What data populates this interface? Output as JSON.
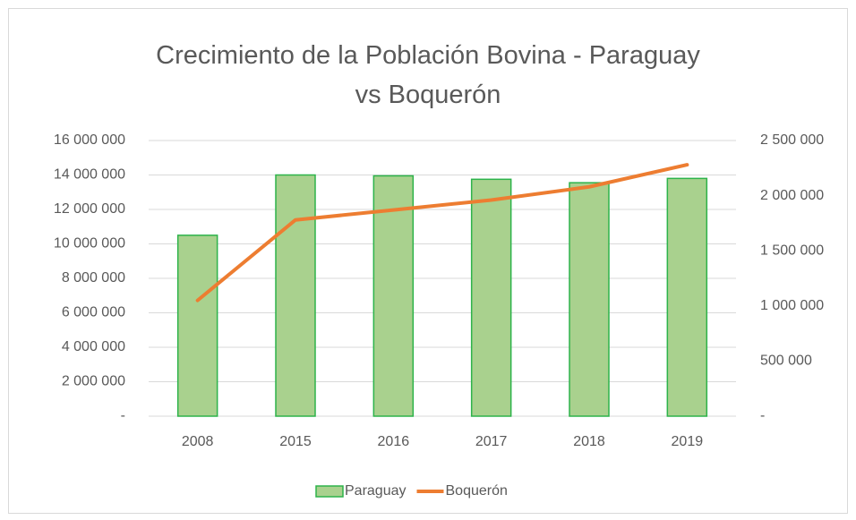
{
  "chart_data": {
    "type": "bar_line",
    "title": "Crecimiento de la Población Bovina - Paraguay vs Boquerón",
    "categories": [
      "2008",
      "2015",
      "2016",
      "2017",
      "2018",
      "2019"
    ],
    "series": [
      {
        "name": "Paraguay",
        "type": "bar",
        "color": "#a9d18e",
        "edge_color": "#2db34a",
        "axis": "y",
        "values": [
          10500000,
          14000000,
          13950000,
          13750000,
          13550000,
          13800000
        ]
      },
      {
        "name": "Boquerón",
        "type": "line",
        "color": "#ed7d31",
        "axis": "y2",
        "values": [
          1050000,
          1780000,
          1870000,
          1960000,
          2080000,
          2280000
        ]
      }
    ],
    "ylim": [
      0,
      16000000
    ],
    "yticks": [
      {
        "value": 0,
        "label": "-"
      },
      {
        "value": 2000000,
        "label": "2 000 000"
      },
      {
        "value": 4000000,
        "label": "4 000 000"
      },
      {
        "value": 6000000,
        "label": "6 000 000"
      },
      {
        "value": 8000000,
        "label": "8 000 000"
      },
      {
        "value": 10000000,
        "label": "10 000 000"
      },
      {
        "value": 12000000,
        "label": "12 000 000"
      },
      {
        "value": 14000000,
        "label": "14 000 000"
      },
      {
        "value": 16000000,
        "label": "16 000 000"
      }
    ],
    "y2lim": [
      0,
      2500000
    ],
    "y2ticks": [
      {
        "value": 0,
        "label": "-"
      },
      {
        "value": 500000,
        "label": "500 000"
      },
      {
        "value": 1000000,
        "label": "1 000 000"
      },
      {
        "value": 1500000,
        "label": "1 500 000"
      },
      {
        "value": 2000000,
        "label": "2 000 000"
      },
      {
        "value": 2500000,
        "label": "2 500 000"
      }
    ],
    "grid": true,
    "legend": "bottom"
  }
}
